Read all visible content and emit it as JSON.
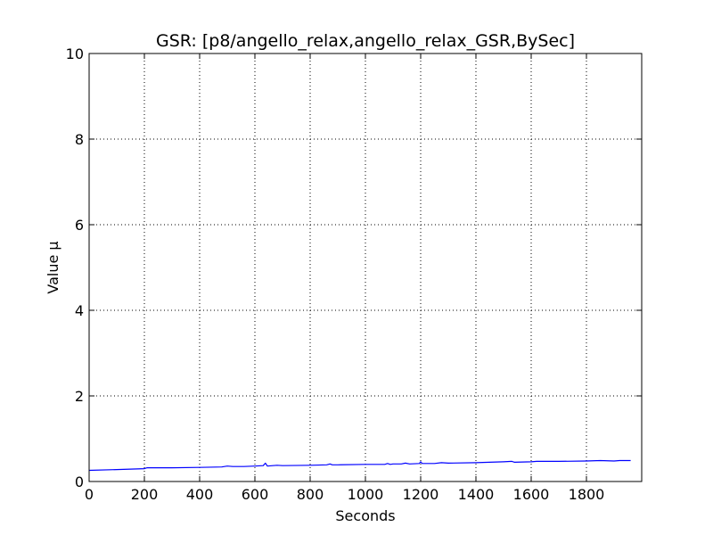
{
  "chart_data": {
    "type": "line",
    "title": "GSR: [p8/angello_relax,angello_relax_GSR,BySec]",
    "xlabel": "Seconds",
    "ylabel": "Value µ",
    "xlim": [
      0,
      2000
    ],
    "ylim": [
      0,
      10
    ],
    "xticks": [
      0,
      200,
      400,
      600,
      800,
      1000,
      1200,
      1400,
      1600,
      1800
    ],
    "yticks": [
      0,
      2,
      4,
      6,
      8,
      10
    ],
    "grid": true,
    "series_color": "#0000ff",
    "series": [
      {
        "x": [
          0,
          100,
          200,
          210,
          300,
          400,
          480,
          500,
          520,
          560,
          600,
          630,
          638,
          645,
          680,
          700,
          800,
          860,
          872,
          880,
          900,
          1000,
          1070,
          1080,
          1090,
          1100,
          1130,
          1145,
          1160,
          1195,
          1200,
          1205,
          1250,
          1275,
          1300,
          1400,
          1500,
          1530,
          1540,
          1600,
          1620,
          1700,
          1800,
          1850,
          1900,
          1920,
          1960
        ],
        "y": [
          0.26,
          0.28,
          0.3,
          0.32,
          0.32,
          0.33,
          0.34,
          0.36,
          0.35,
          0.35,
          0.36,
          0.37,
          0.43,
          0.36,
          0.38,
          0.37,
          0.38,
          0.39,
          0.41,
          0.39,
          0.39,
          0.4,
          0.4,
          0.42,
          0.4,
          0.41,
          0.41,
          0.43,
          0.41,
          0.42,
          0.46,
          0.42,
          0.42,
          0.44,
          0.43,
          0.44,
          0.46,
          0.47,
          0.45,
          0.46,
          0.47,
          0.47,
          0.48,
          0.49,
          0.48,
          0.49,
          0.49
        ]
      }
    ]
  }
}
